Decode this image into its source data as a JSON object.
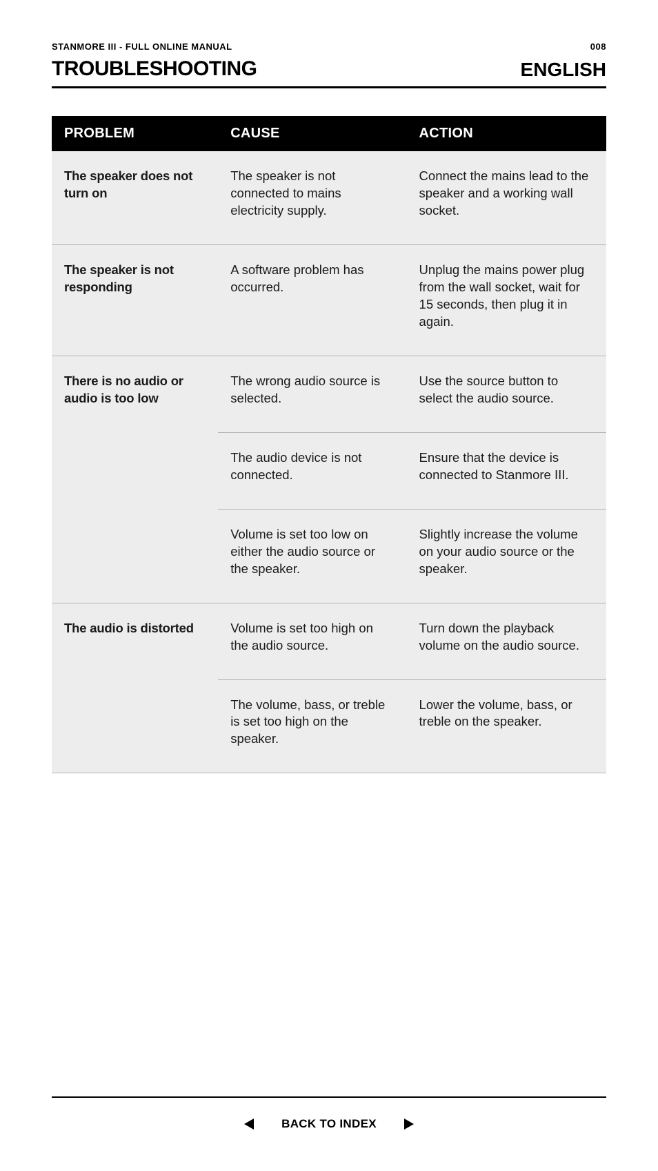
{
  "meta": {
    "document_title": "STANMORE III - FULL ONLINE MANUAL",
    "page_number": "008",
    "section_title": "TROUBLESHOOTING",
    "language": "ENGLISH"
  },
  "table": {
    "headers": {
      "problem": "PROBLEM",
      "cause": "CAUSE",
      "action": "ACTION"
    },
    "rows": [
      {
        "problem": "The speaker does not turn on",
        "cause": "The speaker is not connected to mains electricity supply.",
        "action": "Connect the mains lead to the speaker and a working wall socket."
      },
      {
        "problem": "The speaker is not responding",
        "cause": "A software problem has occurred.",
        "action": "Unplug the mains power plug from the wall socket, wait for 15 seconds, then plug it in again."
      },
      {
        "problem": "There is no audio or audio is too low",
        "cause": "The wrong audio source is selected.",
        "action": "Use the source button to select the audio source."
      },
      {
        "problem": "",
        "cause": "The audio device is not connected.",
        "action": "Ensure that the device is connected to Stanmore III."
      },
      {
        "problem": "",
        "cause": "Volume is set too low on either the audio source or the speaker.",
        "action": "Slightly increase the volume on your audio source or the speaker."
      },
      {
        "problem": "The audio is distorted",
        "cause": "Volume is set too high on the audio source.",
        "action": "Turn down the playback volume on the audio source."
      },
      {
        "problem": "",
        "cause": "The volume, bass, or treble is set too high on the speaker.",
        "action": "Lower the volume, bass, or treble on the speaker."
      }
    ]
  },
  "footer": {
    "back": "BACK TO INDEX"
  },
  "styles": {
    "page_bg": "#ffffff",
    "table_bg": "#ededed",
    "header_bg": "#000000",
    "header_fg": "#ffffff",
    "border_color": "#b5b5b5",
    "text_color": "#1a1a1a",
    "body_font_size_pt": 14,
    "title_font_size_pt": 22,
    "column_widths_pct": [
      30,
      34,
      36
    ]
  }
}
